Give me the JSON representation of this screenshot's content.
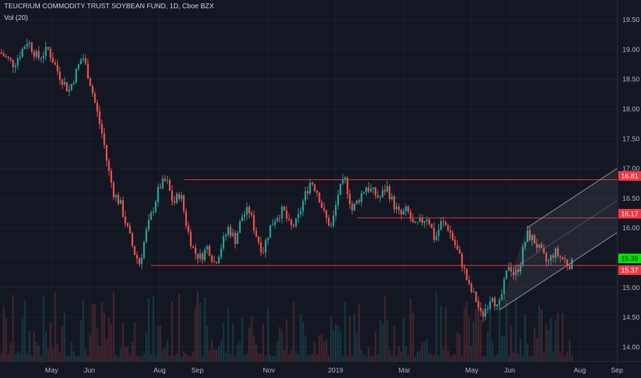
{
  "header": {
    "title": "TEUCRIUM COMMODITY TRUST SOYBEAN FUND, 1D, Cboe BZX",
    "volume_label": "Vol (20)"
  },
  "colors": {
    "background": "#131722",
    "up": "#26a69a",
    "down": "#ef5350",
    "line": "#f23645",
    "axis_text": "#b2b5be",
    "channel": "#9598a1",
    "badge_green": "#00e400",
    "badge_red": "#f23645"
  },
  "chart_data": {
    "type": "candlestick",
    "title": "TEUCRIUM COMMODITY TRUST SOYBEAN FUND, 1D, Cboe BZX",
    "ylim": [
      13.75,
      19.75
    ],
    "y_ticks": [
      14.0,
      14.5,
      15.0,
      15.5,
      16.0,
      16.5,
      17.0,
      17.5,
      18.0,
      18.5,
      19.0,
      19.5
    ],
    "x_ticks": [
      "May",
      "Jun",
      "Aug",
      "Sep",
      "Nov",
      "2019",
      "Mar",
      "May",
      "Jun",
      "Aug",
      "Sep"
    ],
    "price_path": [
      [
        0,
        18.95
      ],
      [
        20,
        18.75
      ],
      [
        40,
        19.15
      ],
      [
        55,
        18.85
      ],
      [
        70,
        19.0
      ],
      [
        85,
        18.6
      ],
      [
        100,
        18.3
      ],
      [
        110,
        18.6
      ],
      [
        120,
        18.9
      ],
      [
        130,
        18.5
      ],
      [
        140,
        18.0
      ],
      [
        150,
        17.5
      ],
      [
        157,
        17.0
      ],
      [
        165,
        16.6
      ],
      [
        175,
        16.4
      ],
      [
        185,
        16.0
      ],
      [
        195,
        15.6
      ],
      [
        203,
        15.4
      ],
      [
        212,
        15.9
      ],
      [
        222,
        16.3
      ],
      [
        232,
        16.7
      ],
      [
        242,
        16.8
      ],
      [
        252,
        16.4
      ],
      [
        262,
        16.6
      ],
      [
        272,
        16.0
      ],
      [
        282,
        15.6
      ],
      [
        292,
        15.5
      ],
      [
        302,
        15.7
      ],
      [
        312,
        15.4
      ],
      [
        322,
        15.7
      ],
      [
        332,
        16.0
      ],
      [
        342,
        15.8
      ],
      [
        352,
        16.2
      ],
      [
        362,
        16.3
      ],
      [
        372,
        15.9
      ],
      [
        382,
        15.6
      ],
      [
        392,
        16.0
      ],
      [
        402,
        16.2
      ],
      [
        412,
        16.3
      ],
      [
        422,
        16.0
      ],
      [
        432,
        16.1
      ],
      [
        442,
        16.5
      ],
      [
        452,
        16.8
      ],
      [
        462,
        16.6
      ],
      [
        472,
        16.2
      ],
      [
        482,
        16.0
      ],
      [
        492,
        16.6
      ],
      [
        502,
        16.8
      ],
      [
        512,
        16.3
      ],
      [
        522,
        16.5
      ],
      [
        532,
        16.7
      ],
      [
        542,
        16.6
      ],
      [
        552,
        16.5
      ],
      [
        562,
        16.7
      ],
      [
        572,
        16.4
      ],
      [
        582,
        16.2
      ],
      [
        592,
        16.3
      ],
      [
        602,
        16.0
      ],
      [
        612,
        16.1
      ],
      [
        622,
        16.2
      ],
      [
        632,
        15.8
      ],
      [
        642,
        16.1
      ],
      [
        652,
        16.0
      ],
      [
        662,
        15.7
      ],
      [
        672,
        15.4
      ],
      [
        682,
        15.0
      ],
      [
        692,
        14.8
      ],
      [
        700,
        14.5
      ],
      [
        708,
        14.7
      ],
      [
        716,
        14.9
      ],
      [
        724,
        14.6
      ],
      [
        732,
        15.0
      ],
      [
        740,
        15.4
      ],
      [
        748,
        15.2
      ],
      [
        756,
        15.4
      ],
      [
        766,
        15.9
      ],
      [
        776,
        15.8
      ],
      [
        786,
        15.6
      ],
      [
        796,
        15.4
      ],
      [
        806,
        15.6
      ],
      [
        816,
        15.5
      ],
      [
        826,
        15.4
      ],
      [
        832,
        15.39
      ]
    ],
    "horizontal_lines": [
      {
        "value": 16.81,
        "x_start": 268
      },
      {
        "value": 16.17,
        "x_start": 519
      },
      {
        "value": 15.37,
        "x_start": 219
      }
    ],
    "channel": {
      "upper": [
        [
          766,
          16.0
        ],
        [
          897,
          17.0
        ]
      ],
      "lower": [
        [
          726,
          14.62
        ],
        [
          897,
          15.92
        ]
      ]
    },
    "price_badges": [
      {
        "label": "16.81",
        "value": 16.81,
        "color": "red"
      },
      {
        "label": "16.17",
        "value": 16.17,
        "color": "red"
      },
      {
        "label": "15.39",
        "value": 15.39,
        "color": "green"
      },
      {
        "label": "15.37",
        "value": 15.37,
        "color": "red"
      }
    ]
  }
}
